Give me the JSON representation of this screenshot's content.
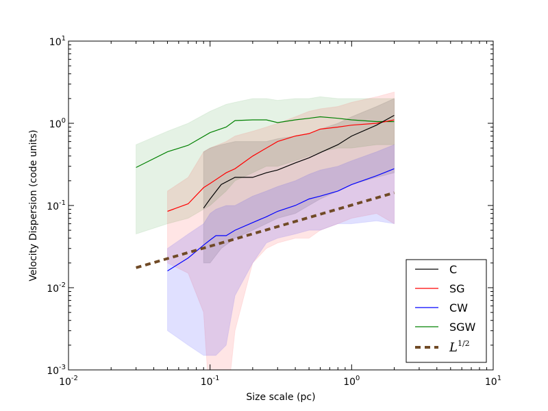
{
  "chart_data": {
    "type": "line",
    "xscale": "log",
    "yscale": "log",
    "xlim": [
      0.01,
      10
    ],
    "ylim": [
      0.001,
      10
    ],
    "xlabel": "Size scale (pc)",
    "ylabel": "Velocity Dispersion (code units)",
    "x_ticks": [
      {
        "value": 0.01,
        "base": "10",
        "exp": "-2"
      },
      {
        "value": 0.1,
        "base": "10",
        "exp": "-1"
      },
      {
        "value": 1,
        "base": "10",
        "exp": "0"
      },
      {
        "value": 10,
        "base": "10",
        "exp": "1"
      }
    ],
    "y_ticks": [
      {
        "value": 0.001,
        "base": "10",
        "exp": "-3"
      },
      {
        "value": 0.01,
        "base": "10",
        "exp": "-2"
      },
      {
        "value": 0.1,
        "base": "10",
        "exp": "-1"
      },
      {
        "value": 1,
        "base": "10",
        "exp": "0"
      },
      {
        "value": 10,
        "base": "10",
        "exp": "1"
      }
    ],
    "legend_position": "lower-right",
    "series": [
      {
        "name": "SGW",
        "label": "SGW",
        "color": "#008000",
        "band_opacity": 0.1,
        "x": [
          0.03,
          0.05,
          0.07,
          0.1,
          0.13,
          0.15,
          0.2,
          0.25,
          0.3,
          0.4,
          0.5,
          0.6,
          0.8,
          1.0,
          1.5,
          2.0
        ],
        "y": [
          0.29,
          0.45,
          0.54,
          0.77,
          0.9,
          1.08,
          1.1,
          1.1,
          1.02,
          1.1,
          1.15,
          1.2,
          1.15,
          1.1,
          1.05,
          1.05
        ],
        "lower": [
          0.045,
          0.06,
          0.07,
          0.1,
          0.15,
          0.2,
          0.25,
          0.3,
          0.3,
          0.35,
          0.4,
          0.45,
          0.5,
          0.5,
          0.55,
          0.55
        ],
        "upper": [
          0.55,
          0.8,
          1.0,
          1.4,
          1.7,
          1.8,
          2.0,
          2.0,
          1.9,
          2.0,
          2.0,
          2.1,
          2.0,
          2.0,
          2.0,
          2.0
        ]
      },
      {
        "name": "SG",
        "label": "SG",
        "color": "#ff0000",
        "band_opacity": 0.1,
        "x": [
          0.05,
          0.07,
          0.09,
          0.1,
          0.13,
          0.15,
          0.2,
          0.25,
          0.3,
          0.4,
          0.5,
          0.6,
          0.8,
          1.0,
          1.5,
          2.0
        ],
        "y": [
          0.085,
          0.105,
          0.165,
          0.185,
          0.25,
          0.28,
          0.4,
          0.5,
          0.6,
          0.7,
          0.75,
          0.85,
          0.9,
          0.95,
          1.0,
          1.1
        ],
        "lower": [
          0.02,
          0.015,
          0.005,
          0.0003,
          0.0003,
          0.003,
          0.02,
          0.03,
          0.035,
          0.04,
          0.04,
          0.05,
          0.06,
          0.07,
          0.08,
          0.06
        ],
        "upper": [
          0.15,
          0.22,
          0.45,
          0.5,
          0.6,
          0.7,
          0.8,
          0.9,
          1.0,
          1.2,
          1.4,
          1.5,
          1.6,
          1.8,
          2.1,
          2.4
        ]
      },
      {
        "name": "C",
        "label": "C",
        "color": "#000000",
        "band_opacity": 0.1,
        "x": [
          0.09,
          0.1,
          0.12,
          0.15,
          0.2,
          0.25,
          0.3,
          0.4,
          0.5,
          0.6,
          0.8,
          1.0,
          1.5,
          2.0
        ],
        "y": [
          0.093,
          0.12,
          0.18,
          0.22,
          0.22,
          0.25,
          0.27,
          0.33,
          0.38,
          0.44,
          0.55,
          0.7,
          0.95,
          1.25
        ],
        "lower": [
          0.02,
          0.02,
          0.03,
          0.04,
          0.05,
          0.06,
          0.07,
          0.08,
          0.1,
          0.12,
          0.15,
          0.18,
          0.22,
          0.25
        ],
        "upper": [
          0.45,
          0.5,
          0.55,
          0.6,
          0.6,
          0.6,
          0.65,
          0.7,
          0.75,
          0.85,
          1.0,
          1.2,
          1.6,
          2.0
        ]
      },
      {
        "name": "CW",
        "label": "CW",
        "color": "#0000ff",
        "band_opacity": 0.12,
        "x": [
          0.05,
          0.07,
          0.09,
          0.1,
          0.11,
          0.13,
          0.15,
          0.2,
          0.25,
          0.3,
          0.4,
          0.5,
          0.6,
          0.8,
          1.0,
          1.5,
          2.0
        ],
        "y": [
          0.016,
          0.023,
          0.033,
          0.038,
          0.043,
          0.043,
          0.05,
          0.062,
          0.073,
          0.085,
          0.1,
          0.12,
          0.13,
          0.15,
          0.18,
          0.23,
          0.28
        ],
        "lower": [
          0.003,
          0.002,
          0.0015,
          0.0015,
          0.0015,
          0.002,
          0.008,
          0.02,
          0.035,
          0.04,
          0.045,
          0.05,
          0.05,
          0.06,
          0.06,
          0.065,
          0.06
        ],
        "upper": [
          0.03,
          0.045,
          0.06,
          0.08,
          0.09,
          0.1,
          0.1,
          0.13,
          0.15,
          0.17,
          0.2,
          0.24,
          0.27,
          0.3,
          0.35,
          0.45,
          0.55
        ]
      }
    ],
    "reference_line": {
      "name": "L^1/2",
      "label": "L",
      "label_exp": "1/2",
      "color": "#704a26",
      "x": [
        0.03,
        2.0
      ],
      "y": [
        0.0175,
        0.143
      ]
    },
    "legend": [
      {
        "label": "C",
        "color": "#000000",
        "style": "solid"
      },
      {
        "label": "SG",
        "color": "#ff0000",
        "style": "solid"
      },
      {
        "label": "CW",
        "color": "#0000ff",
        "style": "solid"
      },
      {
        "label": "SGW",
        "color": "#008000",
        "style": "solid"
      },
      {
        "label": "L",
        "label_exp": "1/2",
        "color": "#704a26",
        "style": "dashed"
      }
    ]
  }
}
